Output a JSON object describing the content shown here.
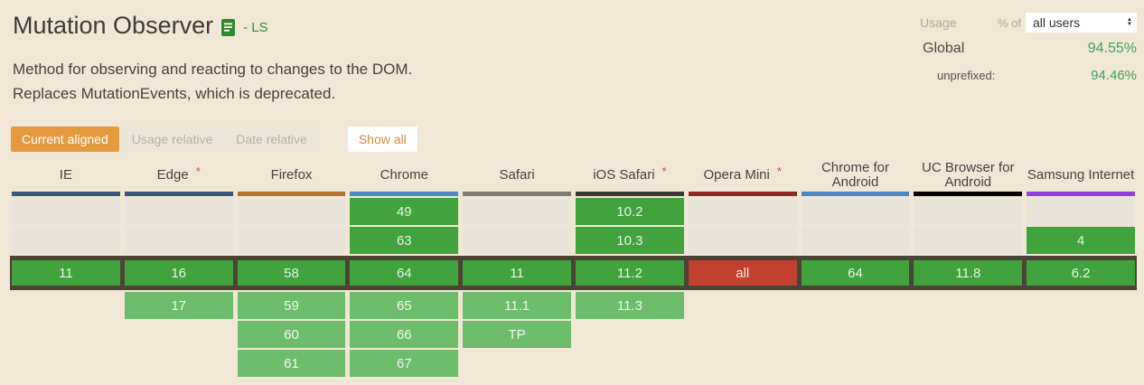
{
  "header": {
    "title": "Mutation Observer",
    "spec_tag": "- LS",
    "description_line1": "Method for observing and reacting to changes to the DOM.",
    "description_line2": "Replaces MutationEvents, which is deprecated.",
    "usage": {
      "usage_label": "Usage",
      "percent_of_label": "% of",
      "select_value": "all users",
      "rows": [
        {
          "label": "Global",
          "value": "94.55%"
        },
        {
          "label": "unprefixed:",
          "value": "94.46%"
        }
      ]
    }
  },
  "tabs": [
    {
      "label": "Current aligned",
      "active": true
    },
    {
      "label": "Usage relative",
      "active": false
    },
    {
      "label": "Date relative",
      "active": false
    }
  ],
  "show_all_label": "Show all",
  "colors": {
    "page_background": "#f1e7d5",
    "empty_cell": "#e8e4d7",
    "green_supported": "#40a33e",
    "green_future": "#6dbd6d",
    "red_not_supported": "#c2402f",
    "current_row_border": "#4b4334",
    "accent_orange": "#e69a40",
    "stat_green": "#3fa45c"
  },
  "table": {
    "browsers": [
      {
        "key": "ie",
        "name": "IE",
        "asterisk": false,
        "bar_color": "#37567c",
        "past": [
          null,
          null
        ],
        "current": {
          "label": "11",
          "support": "y"
        },
        "future": [
          null,
          null,
          null
        ]
      },
      {
        "key": "edge",
        "name": "Edge",
        "asterisk": true,
        "bar_color": "#37567c",
        "past": [
          null,
          null
        ],
        "current": {
          "label": "16",
          "support": "y"
        },
        "future": [
          {
            "label": "17"
          },
          null,
          null
        ]
      },
      {
        "key": "firefox",
        "name": "Firefox",
        "asterisk": false,
        "bar_color": "#b5722d",
        "past": [
          null,
          null
        ],
        "current": {
          "label": "58",
          "support": "y"
        },
        "future": [
          {
            "label": "59"
          },
          {
            "label": "60"
          },
          {
            "label": "61"
          }
        ]
      },
      {
        "key": "chrome",
        "name": "Chrome",
        "asterisk": false,
        "bar_color": "#4a88c2",
        "past": [
          {
            "label": "49"
          },
          {
            "label": "63"
          }
        ],
        "current": {
          "label": "64",
          "support": "y"
        },
        "future": [
          {
            "label": "65"
          },
          {
            "label": "66"
          },
          {
            "label": "67"
          }
        ]
      },
      {
        "key": "safari",
        "name": "Safari",
        "asterisk": false,
        "bar_color": "#7c7b76",
        "past": [
          null,
          null
        ],
        "current": {
          "label": "11",
          "support": "y"
        },
        "future": [
          {
            "label": "11.1"
          },
          {
            "label": "TP"
          },
          null
        ]
      },
      {
        "key": "ios-safari",
        "name": "iOS Safari",
        "asterisk": true,
        "bar_color": "#3b3a35",
        "past": [
          {
            "label": "10.2"
          },
          {
            "label": "10.3"
          }
        ],
        "current": {
          "label": "11.2",
          "support": "y"
        },
        "future": [
          {
            "label": "11.3"
          },
          null,
          null
        ]
      },
      {
        "key": "opera-mini",
        "name": "Opera Mini",
        "asterisk": true,
        "bar_color": "#8e2a20",
        "past": [
          null,
          null
        ],
        "current": {
          "label": "all",
          "support": "n"
        },
        "future": [
          null,
          null,
          null
        ]
      },
      {
        "key": "chrome-android",
        "name": "Chrome for Android",
        "asterisk": false,
        "bar_color": "#4a88c2",
        "past": [
          null,
          null
        ],
        "current": {
          "label": "64",
          "support": "y"
        },
        "future": [
          null,
          null,
          null
        ]
      },
      {
        "key": "uc-android",
        "name": "UC Browser for Android",
        "asterisk": false,
        "bar_color": "#000000",
        "past": [
          null,
          null
        ],
        "current": {
          "label": "11.8",
          "support": "y"
        },
        "future": [
          null,
          null,
          null
        ]
      },
      {
        "key": "samsung",
        "name": "Samsung Internet",
        "asterisk": false,
        "bar_color": "#9340e0",
        "past": [
          null,
          {
            "label": "4"
          }
        ],
        "current": {
          "label": "6.2",
          "support": "y"
        },
        "future": [
          null,
          null,
          null
        ]
      }
    ]
  }
}
